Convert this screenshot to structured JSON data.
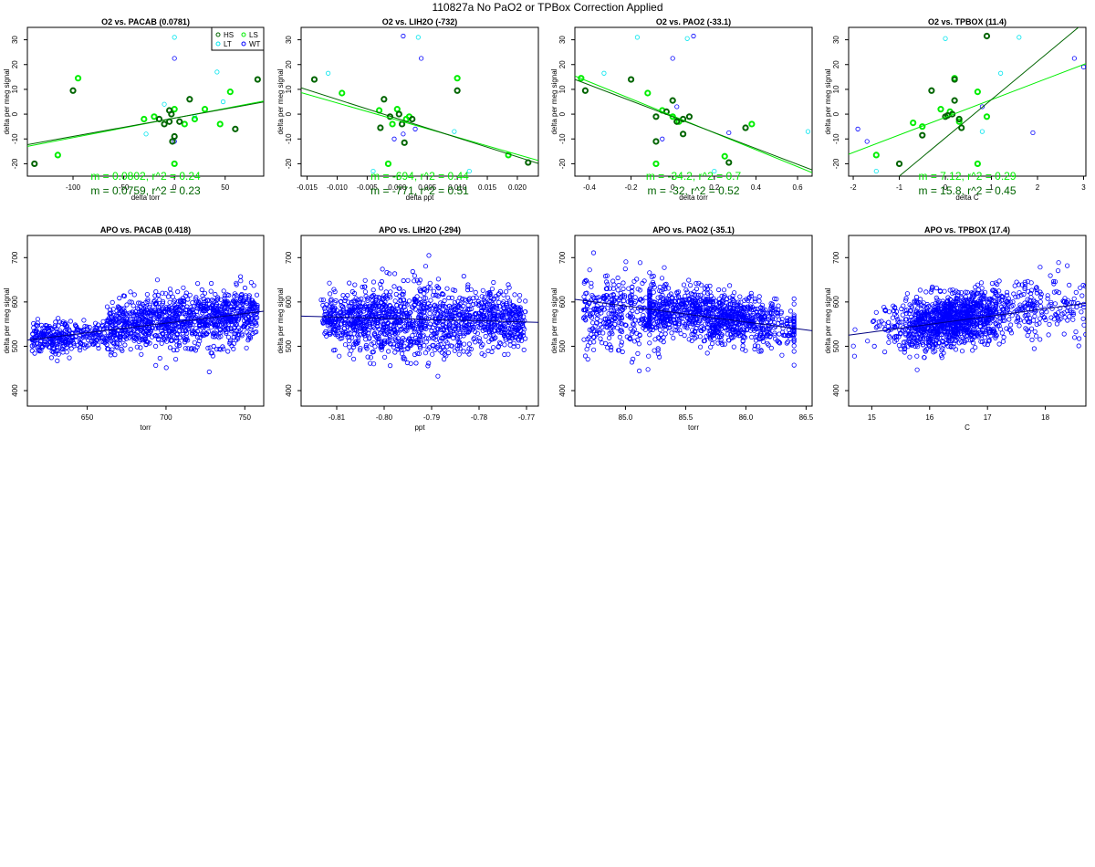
{
  "figure": {
    "title": "110827a   No PaO2 or TPBox Correction Applied"
  },
  "colors": {
    "hs": "#006400",
    "ls": "#00ee00",
    "lt": "#00e5ee",
    "wt": "#0000ff",
    "fit_dark": "#006400",
    "fit_light": "#00ee00",
    "apo": "#0000ff"
  },
  "chart_data": [
    {
      "type": "scatter",
      "title": "O2 vs. PACAB (0.0781)",
      "xlabel": "delta torr",
      "ylabel": "delta per meg signal",
      "xlim": [
        -145,
        88
      ],
      "ylim": [
        -25,
        35
      ],
      "xticks": [
        -100,
        -50,
        0,
        50
      ],
      "yticks": [
        -20,
        -10,
        0,
        10,
        20,
        30
      ],
      "legend": {
        "position": "top-right",
        "entries": [
          "HS",
          "LS",
          "LT",
          "WT"
        ]
      },
      "annotations": [
        "m = 0.0802, r^2 = 0.24",
        "m = 0.0759, r^2 = 0.23"
      ],
      "fits": [
        {
          "color": "light",
          "x": [
            -145,
            88
          ],
          "y": [
            -13.0,
            5.3
          ]
        },
        {
          "color": "dark",
          "x": [
            -145,
            88
          ],
          "y": [
            -12.3,
            4.9
          ]
        }
      ],
      "groups": {
        "HS": [
          [
            -138,
            -20
          ],
          [
            -100,
            9.5
          ],
          [
            -5,
            1.5
          ],
          [
            -3,
            0
          ],
          [
            -5,
            -3
          ],
          [
            -10,
            -4
          ],
          [
            -15,
            -2
          ],
          [
            -2,
            -11
          ],
          [
            0,
            -9
          ],
          [
            5,
            -3
          ],
          [
            15,
            6
          ],
          [
            60,
            -6
          ],
          [
            82,
            14
          ]
        ],
        "LS": [
          [
            -115,
            -16.5
          ],
          [
            -95,
            14.5
          ],
          [
            -30,
            -2
          ],
          [
            -20,
            -1
          ],
          [
            0,
            2
          ],
          [
            10,
            -4
          ],
          [
            20,
            -2
          ],
          [
            30,
            2
          ],
          [
            45,
            -4
          ],
          [
            55,
            9
          ],
          [
            0,
            -20
          ]
        ],
        "LT": [
          [
            -28,
            -8
          ],
          [
            -10,
            4
          ],
          [
            0,
            31
          ],
          [
            42,
            17
          ],
          [
            48,
            5
          ],
          [
            20,
            -1
          ]
        ],
        "WT": [
          [
            0,
            22.5
          ],
          [
            0,
            -11
          ]
        ]
      }
    },
    {
      "type": "scatter",
      "title": "O2 vs. LIH2O (-732)",
      "xlabel": "delta ppt",
      "ylabel": "delta per meg signal",
      "xlim": [
        -0.016,
        0.0235
      ],
      "ylim": [
        -25,
        35
      ],
      "xticks": [
        -0.015,
        -0.01,
        -0.005,
        0.0,
        0.005,
        0.01,
        0.015,
        0.02
      ],
      "xticklabels": [
        "-0.015",
        "-0.010",
        "-0.005",
        "0.000",
        "0.005",
        "0.010",
        "0.015",
        "0.020"
      ],
      "yticks": [
        -20,
        -10,
        0,
        10,
        20,
        30
      ],
      "annotations": [
        "m = -694, r^2 = 0.44",
        "m = -771, r^2 = 0.51"
      ],
      "fits": [
        {
          "color": "light",
          "x": [
            -0.016,
            0.0235
          ],
          "y": [
            8.7,
            -18.7
          ]
        },
        {
          "color": "dark",
          "x": [
            -0.016,
            0.0235
          ],
          "y": [
            10.6,
            -19.9
          ]
        }
      ],
      "groups": {
        "HS": [
          [
            -0.0138,
            14
          ],
          [
            -0.0022,
            6
          ],
          [
            -0.0028,
            -5.5
          ],
          [
            -0.0012,
            -1
          ],
          [
            0.0008,
            -4
          ],
          [
            0.0012,
            -11.5
          ],
          [
            0.0025,
            -2
          ],
          [
            0.01,
            9.5
          ],
          [
            0.0218,
            -19.5
          ],
          [
            0.0003,
            0
          ]
        ],
        "LS": [
          [
            -0.0092,
            8.5
          ],
          [
            -0.003,
            1.5
          ],
          [
            -0.0008,
            -4
          ],
          [
            0.0,
            2
          ],
          [
            0.0015,
            -2
          ],
          [
            0.002,
            -1
          ],
          [
            0.01,
            14.5
          ],
          [
            0.0185,
            -16.5
          ],
          [
            -0.0015,
            -20
          ]
        ],
        "LT": [
          [
            -0.0115,
            16.5
          ],
          [
            0.0035,
            31
          ],
          [
            0.0095,
            -7
          ],
          [
            -0.004,
            -23
          ],
          [
            0.012,
            -23
          ]
        ],
        "WT": [
          [
            0.001,
            31.5
          ],
          [
            0.004,
            22.5
          ],
          [
            0.001,
            -8
          ],
          [
            -0.0005,
            -10
          ],
          [
            0.003,
            -6
          ]
        ]
      }
    },
    {
      "type": "scatter",
      "title": "O2 vs. PAO2 (-33.1)",
      "xlabel": "delta torr",
      "ylabel": "delta per meg signal",
      "xlim": [
        -0.47,
        0.67
      ],
      "ylim": [
        -25,
        35
      ],
      "xticks": [
        -0.4,
        -0.2,
        0.0,
        0.2,
        0.4,
        0.6
      ],
      "yticks": [
        -20,
        -10,
        0,
        10,
        20,
        30
      ],
      "annotations": [
        "m = -34.2, r^2 = 0.7",
        "m = -32, r^2 = 0.52"
      ],
      "fits": [
        {
          "color": "light",
          "x": [
            -0.47,
            0.67
          ],
          "y": [
            15.4,
            -23.6
          ]
        },
        {
          "color": "dark",
          "x": [
            -0.47,
            0.67
          ],
          "y": [
            14.0,
            -22.5
          ]
        }
      ],
      "groups": {
        "HS": [
          [
            -0.42,
            9.5
          ],
          [
            -0.2,
            14
          ],
          [
            -0.08,
            -1
          ],
          [
            -0.03,
            1
          ],
          [
            0.0,
            5.5
          ],
          [
            0.05,
            -2
          ],
          [
            0.05,
            -8
          ],
          [
            0.08,
            -1
          ],
          [
            -0.08,
            -11
          ],
          [
            0.27,
            -19.5
          ],
          [
            0.35,
            -5.5
          ],
          [
            0.02,
            -3
          ]
        ],
        "LS": [
          [
            -0.44,
            14.5
          ],
          [
            -0.12,
            8.5
          ],
          [
            -0.05,
            1.5
          ],
          [
            0.0,
            -1
          ],
          [
            0.03,
            -3
          ],
          [
            0.25,
            -17
          ],
          [
            0.38,
            -4
          ],
          [
            -0.08,
            -20
          ]
        ],
        "LT": [
          [
            -0.33,
            16.5
          ],
          [
            -0.17,
            31
          ],
          [
            0.07,
            30.5
          ],
          [
            0.65,
            -7
          ],
          [
            0.2,
            -23
          ]
        ],
        "WT": [
          [
            0.1,
            31.5
          ],
          [
            0.0,
            22.5
          ],
          [
            0.27,
            -7.5
          ],
          [
            0.02,
            3
          ],
          [
            -0.05,
            -10
          ]
        ]
      }
    },
    {
      "type": "scatter",
      "title": "O2 vs. TPBOX (11.4)",
      "xlabel": "delta C",
      "ylabel": "delta per meg signal",
      "xlim": [
        -2.1,
        3.05
      ],
      "ylim": [
        -25,
        35
      ],
      "xticks": [
        -2,
        -1,
        0,
        1,
        2,
        3
      ],
      "yticks": [
        -20,
        -10,
        0,
        10,
        20,
        30
      ],
      "annotations": [
        "m = 7.12, r^2 = 0.29",
        "m = 15.8, r^2 = 0.45"
      ],
      "fits": [
        {
          "color": "light",
          "x": [
            -2.1,
            3.05
          ],
          "y": [
            -16.2,
            20.4
          ]
        },
        {
          "color": "dark",
          "x": [
            -1.0,
            3.05
          ],
          "y": [
            -25,
            37.5
          ]
        }
      ],
      "groups": {
        "HS": [
          [
            -1.0,
            -20
          ],
          [
            -0.3,
            9.5
          ],
          [
            0.0,
            -1
          ],
          [
            0.05,
            -0.5
          ],
          [
            0.2,
            5.5
          ],
          [
            0.15,
            0
          ],
          [
            -0.5,
            -8.5
          ],
          [
            0.3,
            -2
          ],
          [
            0.35,
            -5.5
          ],
          [
            0.9,
            31.5
          ],
          [
            0.2,
            14
          ]
        ],
        "LS": [
          [
            -1.5,
            -16.5
          ],
          [
            -0.5,
            -5
          ],
          [
            -0.1,
            2
          ],
          [
            0.1,
            1
          ],
          [
            0.3,
            -3
          ],
          [
            0.7,
            9
          ],
          [
            0.9,
            -1
          ],
          [
            0.2,
            14.5
          ],
          [
            -0.7,
            -3.5
          ],
          [
            0.7,
            -20
          ]
        ],
        "LT": [
          [
            0.0,
            30.5
          ],
          [
            1.6,
            31
          ],
          [
            1.2,
            16.5
          ],
          [
            -1.5,
            -23
          ],
          [
            0.8,
            -7
          ]
        ],
        "WT": [
          [
            -1.9,
            -6
          ],
          [
            -1.7,
            -11
          ],
          [
            2.8,
            22.5
          ],
          [
            1.9,
            -7.5
          ],
          [
            3.0,
            19
          ],
          [
            0.8,
            3
          ]
        ]
      }
    },
    {
      "type": "scatter",
      "title": "APO vs. PACAB (0.418)",
      "xlabel": "torr",
      "ylabel": "delta per meg signal",
      "xlim": [
        612,
        762
      ],
      "ylim": [
        365,
        750
      ],
      "xticks": [
        650,
        700,
        750
      ],
      "yticks": [
        400,
        500,
        600,
        700
      ],
      "fit": {
        "x": [
          612,
          762
        ],
        "y": [
          514,
          579
        ]
      }
    },
    {
      "type": "scatter",
      "title": "APO vs. LIH2O (-294)",
      "xlabel": "ppt",
      "ylabel": "delta per meg signal",
      "xlim": [
        -0.8175,
        -0.7675
      ],
      "ylim": [
        365,
        750
      ],
      "xticks": [
        -0.81,
        -0.8,
        -0.79,
        -0.78,
        -0.77
      ],
      "xticklabels": [
        "-0.81",
        "-0.80",
        "-0.79",
        "-0.78",
        "-0.77"
      ],
      "yticks": [
        400,
        500,
        600,
        700
      ],
      "fit": {
        "x": [
          -0.8175,
          -0.7675
        ],
        "y": [
          568,
          554
        ]
      }
    },
    {
      "type": "scatter",
      "title": "APO vs. PAO2 (-35.1)",
      "xlabel": "torr",
      "ylabel": "delta per meg signal",
      "xlim": [
        84.58,
        86.55
      ],
      "ylim": [
        365,
        750
      ],
      "xticks": [
        85.0,
        85.5,
        86.0,
        86.5
      ],
      "xticklabels": [
        "85.0",
        "85.5",
        "86.0",
        "86.5"
      ],
      "yticks": [
        400,
        500,
        600,
        700
      ],
      "fit": {
        "x": [
          84.58,
          86.55
        ],
        "y": [
          606,
          535
        ]
      }
    },
    {
      "type": "scatter",
      "title": "APO vs. TPBOX (17.4)",
      "xlabel": "C",
      "ylabel": "delta per meg signal",
      "xlim": [
        14.6,
        18.7
      ],
      "ylim": [
        365,
        750
      ],
      "xticks": [
        15,
        16,
        17,
        18
      ],
      "yticks": [
        400,
        500,
        600,
        700
      ],
      "fit": {
        "x": [
          14.6,
          18.7
        ],
        "y": [
          525,
          597
        ]
      }
    }
  ]
}
